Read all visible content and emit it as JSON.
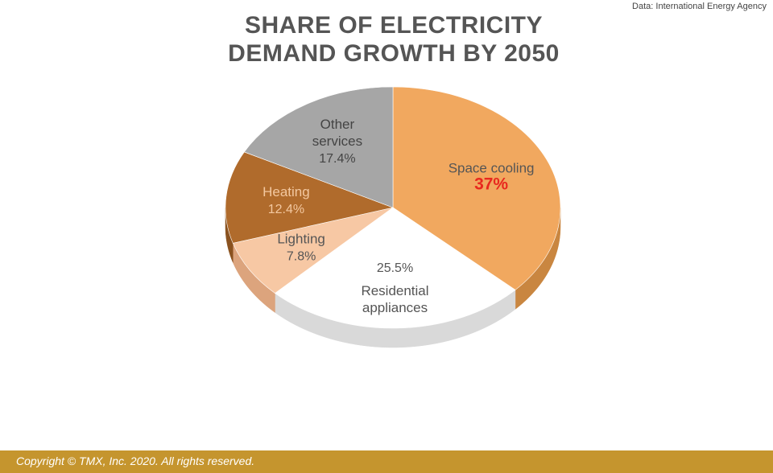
{
  "source": "Data: International Energy Agency",
  "title_lines": [
    "SHARE OF ELECTRICITY",
    "DEMAND GROWTH BY 2050"
  ],
  "footer": "Copyright © TMX, Inc. 2020. All rights reserved.",
  "chart_data": {
    "type": "pie",
    "title": "SHARE OF ELECTRICITY DEMAND GROWTH BY 2050",
    "slices": [
      {
        "label_lines": [
          "Space cooling"
        ],
        "value_label": "37%",
        "value": 37,
        "color": "#f1a85f",
        "side": "#c98640",
        "label_color": "#555555",
        "value_color": "#e8281e"
      },
      {
        "label_lines": [
          "Residential",
          "appliances"
        ],
        "value_label": "25.5%",
        "value": 25.5,
        "color": "#ffffff",
        "side": "#d9d9d9",
        "label_color": "#555555",
        "value_color": "#555555"
      },
      {
        "label_lines": [
          "Lighting"
        ],
        "value_label": "7.8%",
        "value": 7.8,
        "color": "#f7c8a4",
        "side": "#dca47d",
        "label_color": "#555555",
        "value_color": "#555555"
      },
      {
        "label_lines": [
          "Heating"
        ],
        "value_label": "12.4%",
        "value": 12.4,
        "color": "#b06b2c",
        "side": "#8a521f",
        "label_color": "#f3c8a0",
        "value_color": "#f3c8a0"
      },
      {
        "label_lines": [
          "Other",
          "services"
        ],
        "value_label": "17.4%",
        "value": 17.4,
        "color": "#a6a6a6",
        "side": "#7f7f7f",
        "label_color": "#444444",
        "value_color": "#444444"
      }
    ]
  }
}
